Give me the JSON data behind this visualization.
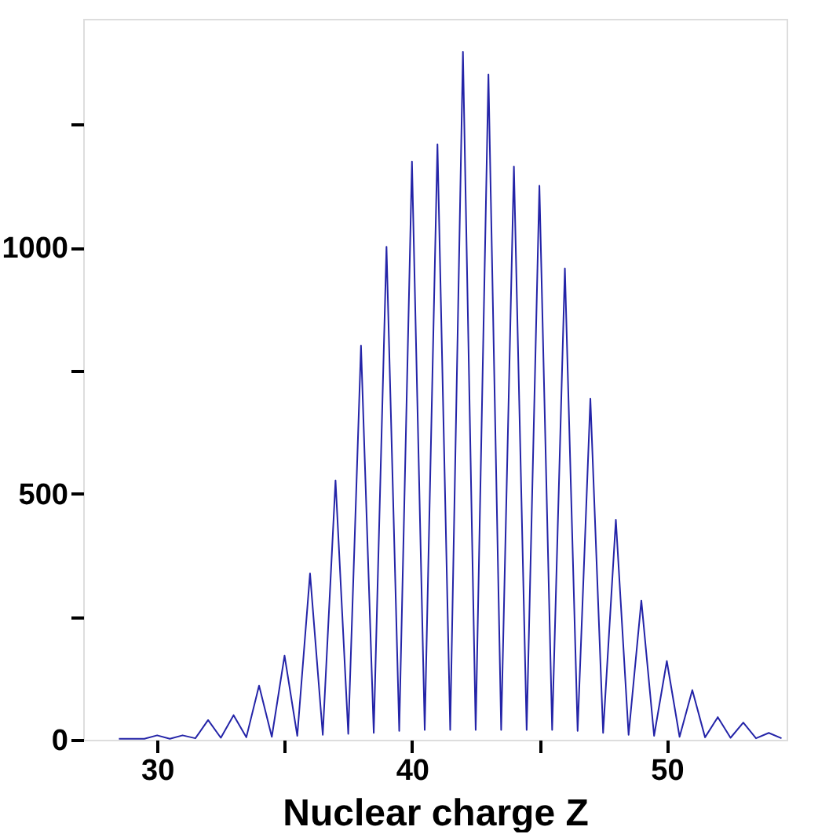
{
  "chart_data": {
    "type": "line",
    "xlabel": "Nuclear charge Z",
    "xlim": [
      27.1,
      54.7
    ],
    "ylim": [
      0,
      1465
    ],
    "xticks": [
      30,
      {
        "value": 35,
        "label": null
      },
      40,
      {
        "value": 45,
        "label": null
      },
      50
    ],
    "yticks": [
      0,
      {
        "value": 250,
        "label": null
      },
      500,
      {
        "value": 750,
        "label": null
      },
      1000,
      {
        "value": 1250,
        "label": null
      }
    ],
    "grid": false,
    "legend": false,
    "marker": "none",
    "line_style": "solid",
    "series": [
      {
        "color": "#2424a8",
        "x": [
          28.5,
          29.5,
          30,
          30.5,
          31,
          31.5,
          32,
          32.5,
          33,
          33.5,
          34,
          34.5,
          35,
          35.5,
          36,
          36.5,
          37,
          37.5,
          38,
          38.5,
          39,
          39.5,
          40,
          40.5,
          41,
          41.5,
          42,
          42.5,
          43,
          43.5,
          44,
          44.5,
          45,
          45.5,
          46,
          46.5,
          47,
          47.5,
          48,
          48.5,
          49,
          49.5,
          50,
          50.5,
          51,
          51.5,
          52,
          52.5,
          53,
          53.5,
          54,
          54.5
        ],
        "values": [
          2,
          2,
          9,
          2,
          9,
          3,
          40,
          4,
          50,
          5,
          110,
          6,
          171,
          8,
          338,
          10,
          527,
          12,
          801,
          14,
          1002,
          18,
          1175,
          20,
          1210,
          20,
          1398,
          20,
          1352,
          20,
          1165,
          20,
          1126,
          20,
          958,
          18,
          693,
          14,
          447,
          10,
          283,
          8,
          160,
          6,
          101,
          5,
          46,
          4,
          35,
          3,
          14,
          3
        ]
      }
    ]
  }
}
